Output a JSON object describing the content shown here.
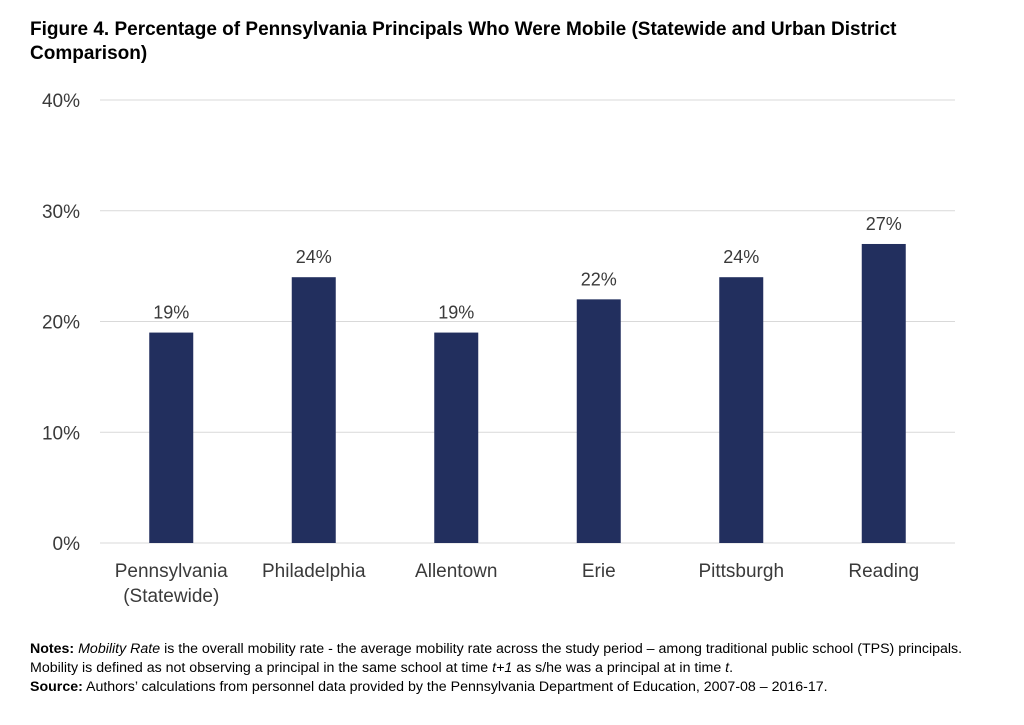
{
  "chart_data": {
    "type": "bar",
    "title": "Figure 4. Percentage of Pennsylvania Principals Who Were Mobile (Statewide and Urban District Comparison)",
    "categories": [
      [
        "Pennsylvania",
        "(Statewide)"
      ],
      [
        "Philadelphia"
      ],
      [
        "Allentown"
      ],
      [
        "Erie"
      ],
      [
        "Pittsburgh"
      ],
      [
        "Reading"
      ]
    ],
    "values": [
      19,
      24,
      19,
      22,
      24,
      27
    ],
    "data_labels": [
      "19%",
      "24%",
      "19%",
      "22%",
      "24%",
      "27%"
    ],
    "ylim": [
      0,
      40
    ],
    "yticks": [
      0,
      10,
      20,
      30,
      40
    ],
    "ytick_labels": [
      "0%",
      "10%",
      "20%",
      "30%",
      "40%"
    ],
    "xlabel": "",
    "ylabel": "",
    "grid": true,
    "bar_color": "#222f5e",
    "grid_color": "#d9d9d9"
  },
  "notes": {
    "notes_label": "Notes:",
    "notes_italic_term": "Mobility Rate",
    "notes_text_1": " is the overall mobility rate - the average mobility rate across the study period – among traditional public school (TPS) principals. Mobility is defined as not observing a principal in the same school at time ",
    "notes_italic_t1": "t+1",
    "notes_text_2": " as s/he was a principal at in time ",
    "notes_italic_t": "t",
    "notes_text_3": ".",
    "source_label": "Source:",
    "source_text": " Authors’ calculations from personnel data provided by the Pennsylvania Department of Education, 2007-08 – 2016-17."
  }
}
